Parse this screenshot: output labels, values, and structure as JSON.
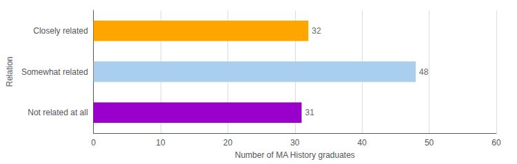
{
  "chart_data": {
    "type": "bar",
    "orientation": "horizontal",
    "categories": [
      "Closely related",
      "Somewhat related",
      "Not related at all"
    ],
    "values": [
      32,
      48,
      31
    ],
    "colors": [
      "#FFA500",
      "#AACFEE",
      "#9900CC"
    ],
    "xlabel": "Number of MA History graduates",
    "ylabel": "Relation",
    "xlim": [
      0,
      60
    ],
    "xticks": [
      0,
      10,
      20,
      30,
      40,
      50,
      60
    ],
    "data_labels": true,
    "grid": true
  }
}
